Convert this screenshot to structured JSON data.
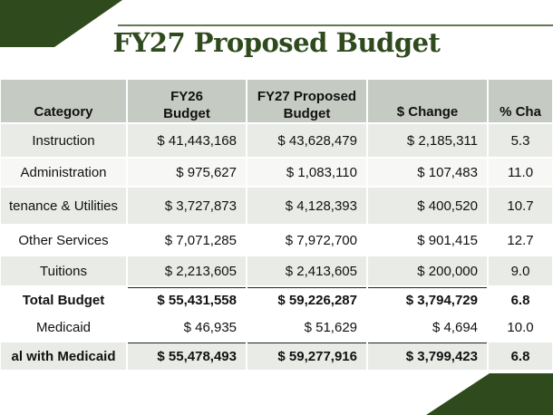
{
  "title": "FY27 Proposed Budget",
  "table": {
    "header": [
      "Category",
      "FY26\nBudget",
      "FY27 Proposed\nBudget",
      "$ Change",
      "% Cha"
    ],
    "rows": [
      [
        "Instruction",
        "$ 41,443,168",
        "$ 43,628,479",
        "$ 2,185,311",
        "5.3"
      ],
      [
        "Administration",
        "$ 975,627",
        "$ 1,083,110",
        "$ 107,483",
        "11.0"
      ],
      [
        "tenance & Utilities",
        "$ 3,727,873",
        "$ 4,128,393",
        "$ 400,520",
        "10.7"
      ],
      [
        "Other Services",
        "$ 7,071,285",
        "$ 7,972,700",
        "$ 901,415",
        "12.7"
      ],
      [
        "Tuitions",
        "$ 2,213,605",
        "$ 2,413,605",
        "$ 200,000",
        "9.0"
      ],
      [
        "Total Budget",
        "$ 55,431,558",
        "$ 59,226,287",
        "$ 3,794,729",
        "6.8"
      ],
      [
        "Medicaid",
        "$ 46,935",
        "$ 51,629",
        "$ 4,694",
        "10.0"
      ],
      [
        "al with Medicaid",
        "$ 55,478,493",
        "$ 59,277,916",
        "$ 3,799,423",
        "6.8"
      ]
    ]
  }
}
